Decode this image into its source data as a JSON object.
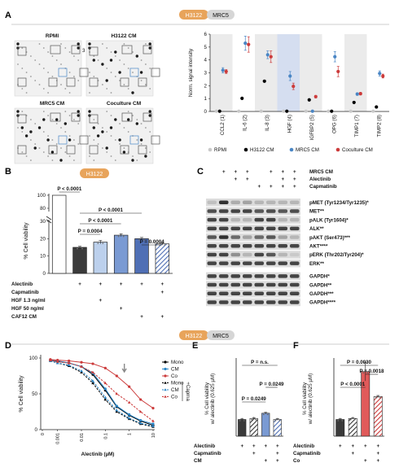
{
  "header": {
    "h3122": "H3122",
    "mrc5": "MRC5"
  },
  "panel_letters": [
    "A",
    "B",
    "C",
    "D",
    "E",
    "F"
  ],
  "panel_A": {
    "array_titles": [
      "RPMI",
      "H3122 CM",
      "MRC5 CM",
      "Coculture CM"
    ],
    "spot_numbers": [
      "1",
      "2",
      "3",
      "4",
      "5",
      "6",
      "7",
      "8"
    ]
  },
  "panel_C": {
    "treat_labels": [
      "MRC5 CM",
      "Alectinib",
      "Capmatinib"
    ],
    "treat_signs": [
      [
        "",
        "+",
        "+",
        "+",
        "",
        "+",
        "+",
        "+"
      ],
      [
        "",
        "",
        "+",
        "+",
        "",
        "",
        "+",
        "+"
      ],
      [
        "",
        "",
        "",
        "",
        "+",
        "+",
        "+",
        "+"
      ]
    ],
    "band_labels": [
      "pMET (Tyr1234/Tyr1235)*",
      "MET**",
      "pALK (Tyr1604)*",
      "ALK**",
      "pAKT (Ser473)***",
      "AKT****",
      "pERK (Thr202/Tyr204)*",
      "ERK**",
      "GAPDH*",
      "GAPDH**",
      "GAPDH***",
      "GAPDH****"
    ]
  },
  "chart_data": [
    {
      "panel": "A",
      "type": "scatter",
      "ylabel": "Norm. signal intensity",
      "ylim": [
        0,
        6
      ],
      "yticks": [
        "0",
        "1",
        "2",
        "3",
        "4",
        "5",
        "6"
      ],
      "categories": [
        "CCL2 (1)",
        "IL-6 (2)",
        "IL-8 (3)",
        "HGF (4)",
        "IGFBP2 (5)",
        "OPG (6)",
        "TIMP1 (7)",
        "TIMP2 (8)"
      ],
      "series": [
        {
          "name": "RPMI",
          "color": "#c9c9c9",
          "values": [
            0.02,
            0.02,
            0.02,
            0.02,
            0.02,
            0.02,
            0.02,
            0.02
          ]
        },
        {
          "name": "H3122 CM",
          "color": "#000000",
          "values": [
            0.02,
            1.02,
            2.35,
            0.02,
            0.9,
            0.02,
            0.7,
            0.35
          ]
        },
        {
          "name": "MRC5 CM",
          "color": "#4a86c5",
          "values": [
            3.2,
            5.3,
            4.4,
            2.75,
            0.02,
            4.25,
            1.35,
            2.95
          ]
        },
        {
          "name": "Coculture CM",
          "color": "#cc3b3b",
          "values": [
            3.1,
            5.2,
            4.25,
            1.95,
            1.15,
            3.1,
            1.38,
            2.75
          ]
        }
      ],
      "errors": [
        [
          0,
          0,
          0,
          0,
          0,
          0,
          0,
          0
        ],
        [
          0,
          0,
          0,
          0,
          0,
          0,
          0,
          0
        ],
        [
          0.2,
          0.55,
          0.3,
          0.35,
          0,
          0.4,
          0.1,
          0.2
        ],
        [
          0.15,
          0.6,
          0.45,
          0.25,
          0.1,
          0.4,
          0.1,
          0.15
        ]
      ],
      "highlight_categories": [
        "HGF (4)"
      ],
      "legend": "bottom"
    },
    {
      "panel": "B",
      "type": "bar",
      "subtitle": "H3122",
      "ylabel": "% Cell viability",
      "yticks_lower": [
        "0",
        "10",
        "20",
        "30"
      ],
      "yticks_upper": [
        "80",
        "100"
      ],
      "values": [
        100,
        15,
        18,
        22,
        20,
        17
      ],
      "errors": [
        0,
        0.6,
        1.0,
        0.8,
        0.7,
        0.6
      ],
      "fills": [
        "#ffffff",
        "#3a3a3a",
        "#bcd0ec",
        "#7a9ad3",
        "#4f6fb5",
        "hatch"
      ],
      "pvalues": [
        {
          "label": "P < 0.0001",
          "from": 0,
          "to": 1
        },
        {
          "label": "P < 0.0001",
          "from": 1,
          "to": 4
        },
        {
          "label": "P < 0.0001",
          "from": 1,
          "to": 3
        },
        {
          "label": "P = 0.0004",
          "from": 1,
          "to": 2
        },
        {
          "label": "P = 0.0004",
          "from": 4,
          "to": 5
        }
      ],
      "treat_labels": [
        "Alectinib",
        "Capmatinib",
        "HGF 1.3 ng/ml",
        "HGF 50 ng/ml",
        "CAF12 CM"
      ],
      "treat_signs": [
        [
          "",
          "+",
          "+",
          "+",
          "+",
          "+"
        ],
        [
          "",
          "",
          "",
          "",
          "",
          "+"
        ],
        [
          "",
          "",
          "+",
          "",
          "",
          ""
        ],
        [
          "",
          "",
          "",
          "+",
          "",
          ""
        ],
        [
          "",
          "",
          "",
          "",
          "+",
          "+"
        ]
      ]
    },
    {
      "panel": "D",
      "type": "line",
      "xlabel": "Alectinib (µM)",
      "ylabel": "% Cell viability",
      "xticks": [
        "0",
        "0.001",
        "0.01",
        "0.1",
        "1",
        "10"
      ],
      "yticks": [
        "0",
        "50",
        "100"
      ],
      "ylim": [
        0,
        100
      ],
      "x": [
        0.0005,
        0.001,
        0.003,
        0.01,
        0.03,
        0.1,
        0.3,
        1,
        3,
        10
      ],
      "series": [
        {
          "name": "Mono",
          "color": "#000000",
          "marker": "circle",
          "dashed": false,
          "values": [
            97,
            95,
            93,
            88,
            77,
            55,
            32,
            20,
            12,
            6
          ]
        },
        {
          "name": "CM",
          "color": "#2b86c7",
          "marker": "circle",
          "dashed": false,
          "values": [
            97,
            96,
            93,
            88,
            79,
            57,
            33,
            21,
            13,
            8
          ]
        },
        {
          "name": "Co",
          "color": "#cc3b3b",
          "marker": "circle",
          "dashed": false,
          "values": [
            98,
            97,
            96,
            94,
            92,
            86,
            75,
            60,
            42,
            30
          ]
        },
        {
          "name": "Mono",
          "color": "#000000",
          "marker": "triangle",
          "dashed": true,
          "values": [
            96,
            93,
            89,
            80,
            65,
            42,
            25,
            15,
            8,
            4
          ]
        },
        {
          "name": "CM",
          "color": "#2b86c7",
          "marker": "triangle",
          "dashed": true,
          "values": [
            96,
            93,
            90,
            82,
            68,
            45,
            27,
            16,
            9,
            5
          ]
        },
        {
          "name": "Co",
          "color": "#cc3b3b",
          "marker": "triangle",
          "dashed": true,
          "values": [
            97,
            95,
            93,
            88,
            80,
            65,
            50,
            38,
            25,
            12
          ]
        }
      ],
      "legend_group_label": "+Capma",
      "arrow_at_x": 0.625
    },
    {
      "panel": "E",
      "type": "bar",
      "ylabel": "% Cell viability w/ alectinib (0.625 µM)",
      "values": [
        16,
        17,
        22,
        16
      ],
      "errors": [
        0.5,
        0.6,
        0.8,
        0.7
      ],
      "fills": [
        "#3a3a3a",
        "hatch-dark",
        "#7a9ad3",
        "hatch-blue"
      ],
      "pvalues": [
        {
          "label": "P = n.s.",
          "from": 0,
          "to": 3
        },
        {
          "label": "P = 0.0249",
          "from": 2,
          "to": 3
        },
        {
          "label": "P = 0.0249",
          "from": 0,
          "to": 2
        }
      ],
      "treat_labels": [
        "Alectinib",
        "Capmatinib",
        "CM"
      ],
      "treat_signs": [
        [
          "+",
          "+",
          "+",
          "+"
        ],
        [
          "",
          "+",
          "",
          "+"
        ],
        [
          "",
          "",
          "+",
          "+"
        ]
      ]
    },
    {
      "panel": "F",
      "type": "bar",
      "ylabel": "% Cell viability w/ alectinib (0.625 µM)",
      "values": [
        16,
        17,
        62,
        38
      ],
      "errors": [
        0.6,
        0.6,
        9,
        1.0
      ],
      "fills": [
        "#3a3a3a",
        "hatch-dark",
        "#e05a5a",
        "hatch-red"
      ],
      "pvalues": [
        {
          "label": "P = 0.0030",
          "from": 0,
          "to": 3
        },
        {
          "label": "P = 0.0018",
          "from": 2,
          "to": 3
        },
        {
          "label": "P < 0.0001",
          "from": 0,
          "to": 2
        }
      ],
      "treat_labels": [
        "Alectinib",
        "Capmatinib",
        "Co"
      ],
      "treat_signs": [
        [
          "+",
          "+",
          "+",
          "+"
        ],
        [
          "",
          "+",
          "",
          "+"
        ],
        [
          "",
          "",
          "+",
          "+"
        ]
      ]
    }
  ]
}
